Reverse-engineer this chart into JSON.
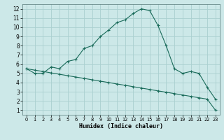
{
  "line1_x": [
    0,
    1,
    2,
    3,
    4,
    5,
    6,
    7,
    8,
    9,
    10,
    11,
    12,
    13,
    14,
    15,
    16,
    17,
    18,
    19,
    20,
    21,
    22,
    23
  ],
  "line1_y": [
    5.5,
    5.0,
    5.0,
    5.7,
    5.5,
    6.3,
    6.5,
    7.7,
    8.0,
    9.0,
    9.7,
    10.5,
    10.8,
    11.5,
    12.0,
    11.8,
    10.2,
    8.0,
    5.5,
    5.0,
    5.2,
    5.0,
    3.5,
    2.2
  ],
  "line2_x": [
    0,
    1,
    2,
    3,
    4,
    5,
    6,
    7,
    8,
    9,
    10,
    11,
    12,
    13,
    14,
    15,
    16,
    17,
    18,
    19,
    20,
    21,
    22,
    23
  ],
  "line2_y": [
    5.5,
    5.35,
    5.2,
    5.05,
    4.9,
    4.75,
    4.6,
    4.45,
    4.3,
    4.15,
    4.0,
    3.85,
    3.7,
    3.55,
    3.4,
    3.25,
    3.1,
    2.95,
    2.8,
    2.65,
    2.5,
    2.35,
    2.2,
    1.0
  ],
  "xlabel": "Humidex (Indice chaleur)",
  "xlim": [
    -0.5,
    23.5
  ],
  "ylim": [
    0.5,
    12.5
  ],
  "yticks": [
    1,
    2,
    3,
    4,
    5,
    6,
    7,
    8,
    9,
    10,
    11,
    12
  ],
  "xticks": [
    0,
    1,
    2,
    3,
    4,
    5,
    6,
    7,
    8,
    9,
    10,
    11,
    12,
    13,
    14,
    15,
    16,
    17,
    18,
    19,
    20,
    21,
    22,
    23
  ],
  "line_color": "#1a6b5a",
  "bg_color": "#cce8e8",
  "grid_color": "#aad0d0"
}
